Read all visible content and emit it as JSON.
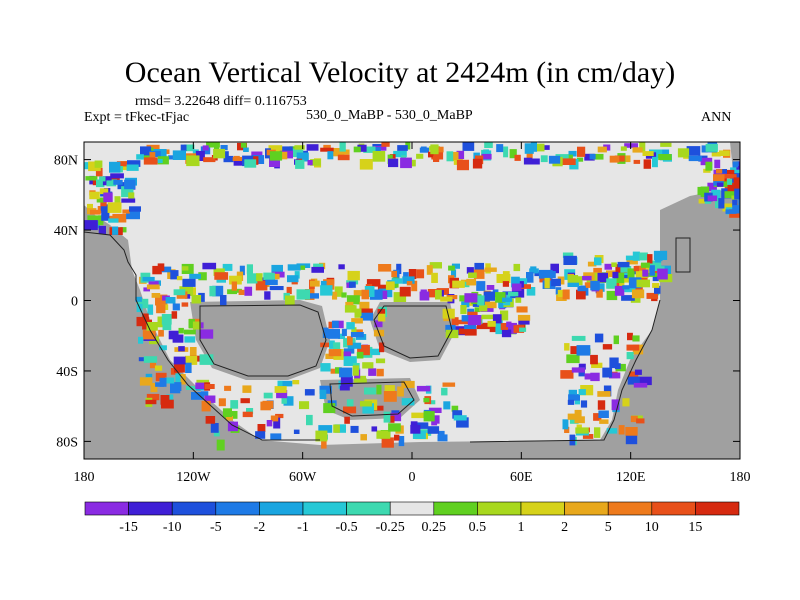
{
  "title": "Ocean Vertical Velocity at 2424m (in cm/day)",
  "stats_line": "rmsd= 3.22648 diff= 0.116753",
  "expt_label": "Expt = tFkec-tFjac",
  "case_label": "530_0_MaBP - 530_0_MaBP",
  "season_label": "ANN",
  "chart_data": {
    "type": "heatmap",
    "x_axis": {
      "range": [
        -180,
        180
      ],
      "ticks": [
        -180,
        -120,
        -60,
        0,
        60,
        120,
        180
      ],
      "tick_labels": [
        "180",
        "120W",
        "60W",
        "0",
        "60E",
        "120E",
        "180"
      ]
    },
    "y_axis": {
      "range": [
        -90,
        90
      ],
      "ticks": [
        80,
        40,
        0,
        -40,
        -80
      ],
      "tick_labels": [
        "80N",
        "40N",
        "0",
        "40S",
        "80S"
      ]
    },
    "colorbar": {
      "labels": [
        "-15",
        "-10",
        "-5",
        "-2",
        "-1",
        "-0.5",
        "-0.25",
        "0.25",
        "0.5",
        "1",
        "2",
        "5",
        "10",
        "15"
      ],
      "colors": [
        "#8a2be2",
        "#3f1fd6",
        "#1e50dc",
        "#1e7ae6",
        "#1aa5e0",
        "#26c8d6",
        "#3dd9b0",
        "#e6e6e6",
        "#60d020",
        "#a8d81e",
        "#d6d21a",
        "#e8a81c",
        "#ee7a1c",
        "#e8501a",
        "#d62a10"
      ]
    },
    "land_color": "#a0a0a0",
    "ocean_near_zero_color": "#e6e6e6"
  }
}
